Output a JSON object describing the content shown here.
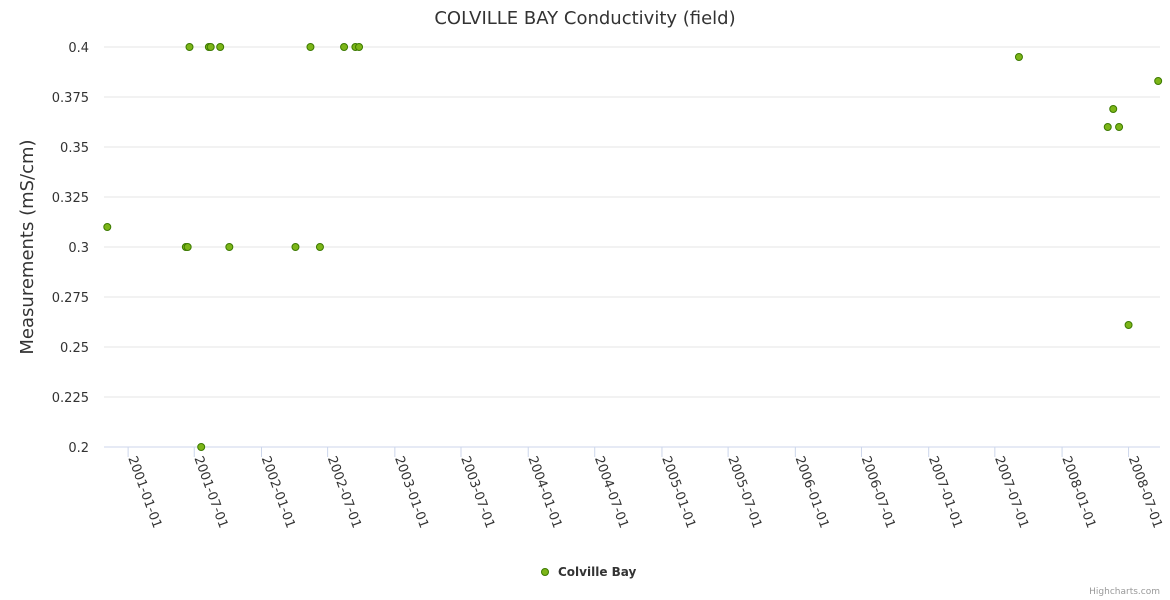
{
  "chart_data": {
    "type": "scatter",
    "title": "COLVILLE BAY Conductivity (field)",
    "xlabel": "",
    "ylabel": "Measurements (mS/cm)",
    "ylim": [
      0.2,
      0.4
    ],
    "y_ticks": [
      0.2,
      0.225,
      0.25,
      0.275,
      0.3,
      0.325,
      0.35,
      0.375,
      0.4
    ],
    "y_tick_labels": [
      "0.2",
      "0.225",
      "0.25",
      "0.275",
      "0.3",
      "0.325",
      "0.35",
      "0.375",
      "0.4"
    ],
    "xlim": [
      "2000-10-27",
      "2008-09-25"
    ],
    "x_ticks": [
      "2001-01-01",
      "2001-07-01",
      "2002-01-01",
      "2002-07-01",
      "2003-01-01",
      "2003-07-01",
      "2004-01-01",
      "2004-07-01",
      "2005-01-01",
      "2005-07-01",
      "2006-01-01",
      "2006-07-01",
      "2007-01-01",
      "2007-07-01",
      "2008-01-01",
      "2008-07-01"
    ],
    "grid": true,
    "legend_position": "bottom-center",
    "series": [
      {
        "name": "Colville Bay",
        "color": "#7cb518",
        "points": [
          {
            "x": "2000-11-05",
            "y": 0.31
          },
          {
            "x": "2001-06-08",
            "y": 0.3
          },
          {
            "x": "2001-06-13",
            "y": 0.3
          },
          {
            "x": "2001-06-18",
            "y": 0.4
          },
          {
            "x": "2001-07-20",
            "y": 0.2
          },
          {
            "x": "2001-08-10",
            "y": 0.4
          },
          {
            "x": "2001-08-15",
            "y": 0.4
          },
          {
            "x": "2001-09-10",
            "y": 0.4
          },
          {
            "x": "2001-10-05",
            "y": 0.3
          },
          {
            "x": "2002-04-04",
            "y": 0.3
          },
          {
            "x": "2002-05-15",
            "y": 0.4
          },
          {
            "x": "2002-06-10",
            "y": 0.3
          },
          {
            "x": "2002-08-15",
            "y": 0.4
          },
          {
            "x": "2002-09-15",
            "y": 0.4
          },
          {
            "x": "2002-09-25",
            "y": 0.4
          },
          {
            "x": "2007-09-05",
            "y": 0.395
          },
          {
            "x": "2008-05-05",
            "y": 0.36
          },
          {
            "x": "2008-05-20",
            "y": 0.369
          },
          {
            "x": "2008-06-05",
            "y": 0.36
          },
          {
            "x": "2008-07-01",
            "y": 0.261
          },
          {
            "x": "2008-09-20",
            "y": 0.383
          }
        ]
      }
    ]
  },
  "credits": "Highcharts.com"
}
